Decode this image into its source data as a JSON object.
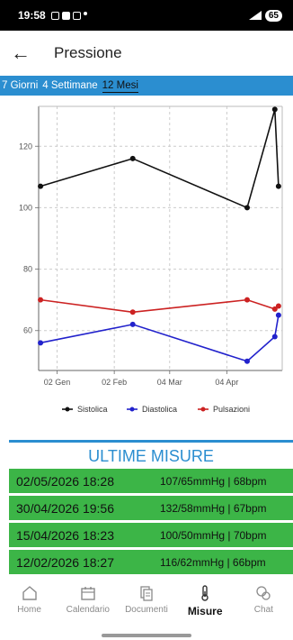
{
  "status": {
    "time": "19:58",
    "battery": "65"
  },
  "header": {
    "title": "Pressione"
  },
  "tabs": [
    {
      "label": "7 Giorni",
      "active": false
    },
    {
      "label": "4 Settimane",
      "active": false
    },
    {
      "label": "12 Mesi",
      "active": true
    }
  ],
  "chart_data": {
    "type": "line",
    "title": "",
    "xlabel": "",
    "ylabel": "",
    "x_ticks": [
      {
        "label": "02 Gen",
        "date": "2026-01-02"
      },
      {
        "label": "02 Feb",
        "date": "2026-02-02"
      },
      {
        "label": "04 Mar",
        "date": "2026-03-04"
      },
      {
        "label": "04 Apr",
        "date": "2026-04-04"
      }
    ],
    "y_ticks": [
      60,
      80,
      100,
      120
    ],
    "ylim": [
      47,
      133
    ],
    "xlim": [
      "2025-12-23",
      "2026-05-04"
    ],
    "grid": true,
    "legend": "bottom",
    "series": [
      {
        "name": "Sistolica",
        "color": "#111111",
        "points": [
          [
            "2025-12-24",
            107
          ],
          [
            "2026-02-12",
            116
          ],
          [
            "2026-04-15",
            100
          ],
          [
            "2026-04-30",
            132
          ],
          [
            "2026-05-02",
            107
          ]
        ]
      },
      {
        "name": "Diastolica",
        "color": "#2222cc",
        "points": [
          [
            "2025-12-24",
            56
          ],
          [
            "2026-02-12",
            62
          ],
          [
            "2026-04-15",
            50
          ],
          [
            "2026-04-30",
            58
          ],
          [
            "2026-05-02",
            65
          ]
        ]
      },
      {
        "name": "Pulsazioni",
        "color": "#cc2222",
        "points": [
          [
            "2025-12-24",
            70
          ],
          [
            "2026-02-12",
            66
          ],
          [
            "2026-04-15",
            70
          ],
          [
            "2026-04-30",
            67
          ],
          [
            "2026-05-02",
            68
          ]
        ]
      }
    ]
  },
  "section": {
    "title": "ULTIME MISURE"
  },
  "measurements": [
    {
      "date": "02/05/2026 18:28",
      "values": "107/65mmHg | 68bpm"
    },
    {
      "date": "30/04/2026 19:56",
      "values": "132/58mmHg | 67bpm"
    },
    {
      "date": "15/04/2026 18:23",
      "values": "100/50mmHg | 70bpm"
    },
    {
      "date": "12/02/2026 18:27",
      "values": "116/62mmHg | 66bpm"
    }
  ],
  "nav": [
    {
      "label": "Home",
      "icon": "home-icon",
      "active": false
    },
    {
      "label": "Calendario",
      "icon": "calendar-icon",
      "active": false
    },
    {
      "label": "Documenti",
      "icon": "documents-icon",
      "active": false
    },
    {
      "label": "Misure",
      "icon": "thermometer-icon",
      "active": true
    },
    {
      "label": "Chat",
      "icon": "chat-icon",
      "active": false
    }
  ]
}
